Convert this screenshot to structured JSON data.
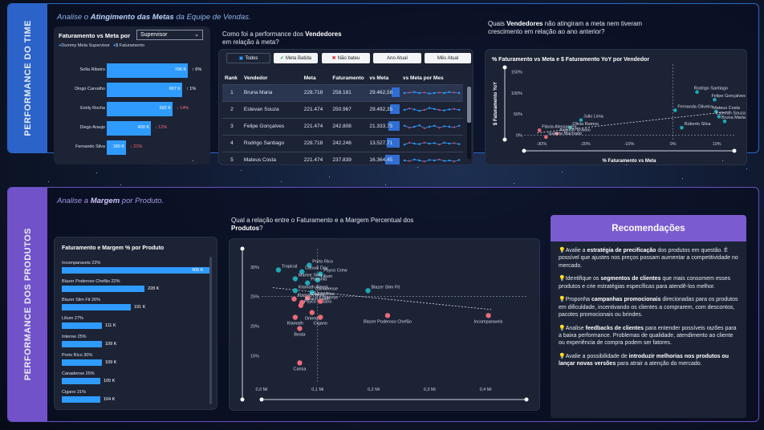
{
  "team": {
    "sidebar_title": "PERFORMANCE DO TIME",
    "section_title_prefix": "Analise o ",
    "section_title_bold": "Atingimento das Metas",
    "section_title_suffix": " da Equipe de Vendas.",
    "bar_card": {
      "title": "Faturamento vs Meta por",
      "dropdown_value": "Supervisor",
      "legend": [
        {
          "label": "Dummy Meta Supervisor",
          "color": "#2f9bff"
        },
        {
          "label": "$ Faturamento",
          "color": "#2f9bff"
        }
      ],
      "rows": [
        {
          "name": "Sofia Ribeiro",
          "value": "706 K",
          "pct": "6%",
          "trend": "up",
          "fill": 0.98
        },
        {
          "name": "Diogo Carvalho",
          "value": "667 K",
          "pct": "1%",
          "trend": "up",
          "fill": 0.91
        },
        {
          "name": "Emily Rocha",
          "value": "592 K",
          "pct": "14%",
          "trend": "down",
          "fill": 0.8
        },
        {
          "name": "Diego Araujo",
          "value": "400 K",
          "pct": "12%",
          "trend": "down",
          "fill": 0.53
        },
        {
          "name": "Fernando Silva",
          "value": "180 K",
          "pct": "21%",
          "trend": "down",
          "fill": 0.23
        }
      ]
    },
    "table_card": {
      "question_prefix": "Como foi a performance dos ",
      "question_bold": "Vendedores",
      "question_suffix": "em relação à meta?",
      "filters": [
        "Todos",
        "Meta Batida",
        "Não bateu",
        "Ano Atual",
        "Mês Atual"
      ],
      "columns": [
        "Rank",
        "Vendedor",
        "Meta",
        "Faturamento",
        "vs Meta",
        "vs Meta por Mes"
      ],
      "rows": [
        {
          "rank": "1",
          "vendedor": "Bruna Maria",
          "meta": "228.718",
          "faturamento": "258.181",
          "vs_meta": "29.462,56",
          "spark": [
            0.5,
            0.55,
            0.6,
            0.5,
            0.55,
            0.45,
            0.5,
            0.55,
            0.5,
            0.6,
            0.55,
            0.5
          ]
        },
        {
          "rank": "2",
          "vendedor": "Estevan Souza",
          "meta": "221.474",
          "faturamento": "250.967",
          "vs_meta": "29.492,35",
          "spark": [
            0.5,
            0.65,
            0.55,
            0.4,
            0.5,
            0.7,
            0.6,
            0.5,
            0.45,
            0.55,
            0.6,
            0.5
          ]
        },
        {
          "rank": "3",
          "vendedor": "Felipe Gonçalves",
          "meta": "221.474",
          "faturamento": "242.808",
          "vs_meta": "21.333,75",
          "spark": [
            0.6,
            0.4,
            0.5,
            0.65,
            0.35,
            0.5,
            0.6,
            0.4,
            0.55,
            0.5,
            0.45,
            0.6
          ]
        },
        {
          "rank": "4",
          "vendedor": "Rodrigo Santiago",
          "meta": "228.718",
          "faturamento": "242.246",
          "vs_meta": "13.527,71",
          "spark": [
            0.4,
            0.6,
            0.5,
            0.45,
            0.6,
            0.5,
            0.55,
            0.4,
            0.6,
            0.5,
            0.55,
            0.45
          ]
        },
        {
          "rank": "5",
          "vendedor": "Mateus Costa",
          "meta": "221.474",
          "faturamento": "237.839",
          "vs_meta": "16.364,45",
          "spark": [
            0.5,
            0.45,
            0.6,
            0.5,
            0.4,
            0.55,
            0.5,
            0.6,
            0.45,
            0.5,
            0.4,
            0.55
          ]
        }
      ]
    },
    "scatter_card": {
      "question_prefix": "Quais ",
      "question_bold": "Vendedores",
      "question_suffix": " não atingiram a meta nem tiveram crescimento em relação ao ano anterior?",
      "chart_data": {
        "type": "scatter",
        "title": "% Faturamento vs Meta e $ Faturamento YoY por Vendedor",
        "xlabel": "% Faturamento vs Meta",
        "ylabel": "$ Faturamento YoY",
        "x_ticks": [
          "-30%",
          "-20%",
          "-10%",
          "0%",
          "10%"
        ],
        "y_ticks": [
          "150%",
          "100%",
          "50%",
          "0%"
        ],
        "xlim": [
          -34,
          14
        ],
        "ylim": [
          -10,
          160
        ],
        "points": [
          {
            "name": "Rodrigo Santiago",
            "x": 5.5,
            "y": 102,
            "color": "#23a6b4"
          },
          {
            "name": "Felipe Gonçalves",
            "x": 9.5,
            "y": 84,
            "color": "#23a6b4"
          },
          {
            "name": "Mateus Costa",
            "x": 9.8,
            "y": 56,
            "color": "#23a6b4"
          },
          {
            "name": "Estevan Souza",
            "x": 10.5,
            "y": 44,
            "color": "#23a6b4"
          },
          {
            "name": "Bruna Maria",
            "x": 11.8,
            "y": 33,
            "color": "#23a6b4"
          },
          {
            "name": "Fernanda Oliveira",
            "x": 0.5,
            "y": 59,
            "color": "#23a6b4"
          },
          {
            "name": "Julio Lima",
            "x": -21,
            "y": 36,
            "color": "#23a6b4"
          },
          {
            "name": "Olivia Ramos",
            "x": -23.5,
            "y": 18,
            "color": "#23a6b4"
          },
          {
            "name": "Roberto Silva",
            "x": 2,
            "y": 18,
            "color": "#23a6b4"
          },
          {
            "name": "Flávia Alessandra",
            "x": -30.5,
            "y": 12,
            "color": "#e86b7a"
          },
          {
            "name": "Augusto Braidio",
            "x": -26.5,
            "y": 4,
            "color": "#e86b7a"
          },
          {
            "name": "Isabela Machado",
            "x": -29,
            "y": -4,
            "color": "#e86b7a"
          }
        ]
      }
    }
  },
  "product": {
    "sidebar_title": "PERFORMANCE DOS PRODUTOS",
    "section_title_prefix": "Analise a ",
    "section_title_bold": "Margem",
    "section_title_suffix": " por Produto.",
    "bar_card": {
      "title": "Faturamento e Margem % por Produto",
      "rows": [
        {
          "label": "Incomparaveis 22%",
          "value": "405 K",
          "fill": 1.0
        },
        {
          "label": "Blazer Poderoso Chefão 22%",
          "value": "228 K",
          "fill": 0.56
        },
        {
          "label": "Blazer Slim Fit 26%",
          "value": "191 K",
          "fill": 0.47
        },
        {
          "label": "Lilium 27%",
          "value": "111 K",
          "fill": 0.27
        },
        {
          "label": "Intense 25%",
          "value": "109 K",
          "fill": 0.27
        },
        {
          "label": "Porto Rico 30%",
          "value": "109 K",
          "fill": 0.27
        },
        {
          "label": "Canadense 25%",
          "value": "105 K",
          "fill": 0.26
        },
        {
          "label": "Cigano 21%",
          "value": "104 K",
          "fill": 0.26
        }
      ]
    },
    "scatter_card": {
      "question_prefix": "Qual a relação entre o Faturamento e a Margem Percentual dos ",
      "question_bold": "Produtos",
      "question_suffix": "?",
      "chart_data": {
        "type": "scatter",
        "title": "",
        "xlabel": "",
        "ylabel": "",
        "x_ticks": [
          "0,0 Mi",
          "0,1 Mi",
          "0,2 Mi",
          "0,3 Mi",
          "0,4 Mi"
        ],
        "y_ticks": [
          "30%",
          "25%",
          "20%",
          "15%"
        ],
        "xlim": [
          0,
          0.43
        ],
        "ylim": [
          11,
          32
        ],
        "points": [
          {
            "name": "Tropical",
            "x": 0.03,
            "y": 29.5,
            "color": "#23a6b4"
          },
          {
            "name": "Porto Rico",
            "x": 0.085,
            "y": 30.3,
            "color": "#23a6b4"
          },
          {
            "name": "Casual Day",
            "x": 0.072,
            "y": 29.2,
            "color": "#23a6b4"
          },
          {
            "name": "Psyco Crew",
            "x": 0.105,
            "y": 28.8,
            "color": "#23a6b4"
          },
          {
            "name": "Marine Slim",
            "x": 0.06,
            "y": 28.0,
            "color": "#23a6b4"
          },
          {
            "name": "Lilium",
            "x": 0.1,
            "y": 27.8,
            "color": "#23a6b4"
          },
          {
            "name": "Poesnia",
            "x": 0.082,
            "y": 27.3,
            "color": "#23a6b4"
          },
          {
            "name": "Klamath Weed",
            "x": 0.06,
            "y": 26.0,
            "color": "#23a6b4"
          },
          {
            "name": "Canadense",
            "x": 0.09,
            "y": 25.7,
            "color": "#23a6b4"
          },
          {
            "name": "Blazer Slim Fit",
            "x": 0.19,
            "y": 26.0,
            "color": "#23a6b4"
          },
          {
            "name": "Klamath White",
            "x": 0.058,
            "y": 24.6,
            "color": "#e86b7a"
          },
          {
            "name": "Casual Blue",
            "x": 0.082,
            "y": 24.8,
            "color": "#e86b7a"
          },
          {
            "name": "Beach Flash",
            "x": 0.072,
            "y": 24.0,
            "color": "#e86b7a"
          },
          {
            "name": "Psyco Urbano",
            "x": 0.07,
            "y": 23.5,
            "color": "#e86b7a"
          },
          {
            "name": "Intense",
            "x": 0.105,
            "y": 24.2,
            "color": "#e86b7a"
          },
          {
            "name": "Oriente",
            "x": 0.09,
            "y": 22.3,
            "color": "#e86b7a"
          },
          {
            "name": "Klamath",
            "x": 0.06,
            "y": 21.5,
            "color": "#e86b7a"
          },
          {
            "name": "Cigano",
            "x": 0.105,
            "y": 21.5,
            "color": "#e86b7a"
          },
          {
            "name": "Blazer Poderoso Chefão",
            "x": 0.225,
            "y": 21.8,
            "color": "#e86b7a"
          },
          {
            "name": "Incomparaveis",
            "x": 0.405,
            "y": 21.8,
            "color": "#e86b7a"
          },
          {
            "name": "Bosta",
            "x": 0.068,
            "y": 19.6,
            "color": "#e86b7a"
          },
          {
            "name": "Carlsa",
            "x": 0.068,
            "y": 13.8,
            "color": "#e86b7a"
          }
        ]
      }
    },
    "recommendations": {
      "title": "Recomendações",
      "items": [
        {
          "pre": "Avalie a ",
          "bold": "estratégia de precificação",
          "post": " dos produtos em questão. É possível que ajustes nos preços possam aumentar a competitividade no mercado."
        },
        {
          "pre": "Identifique os ",
          "bold": "segmentos de clientes",
          "post": " que mais consomem esses produtos e crie estratégias específicas para atendê-los melhor."
        },
        {
          "pre": "Proponha ",
          "bold": "campanhas promocionais",
          "post": " direcionadas para os produtos em dificuldade, incentivando os clientes a comprarem, com descontos, pacotes promocionais ou brindes."
        },
        {
          "pre": "Analise ",
          "bold": "feedbacks de clientes",
          "post": " para entender possíveis razões para a baixa performance. Problemas de qualidade, atendimento ao cliente ou experiência de compra podem ser fatores."
        },
        {
          "pre": "Avalie a possibilidade de ",
          "bold": "introduzir melhorias nos produtos ou lançar novas versões",
          "post": " para atrair a atenção do mercado."
        }
      ]
    }
  }
}
